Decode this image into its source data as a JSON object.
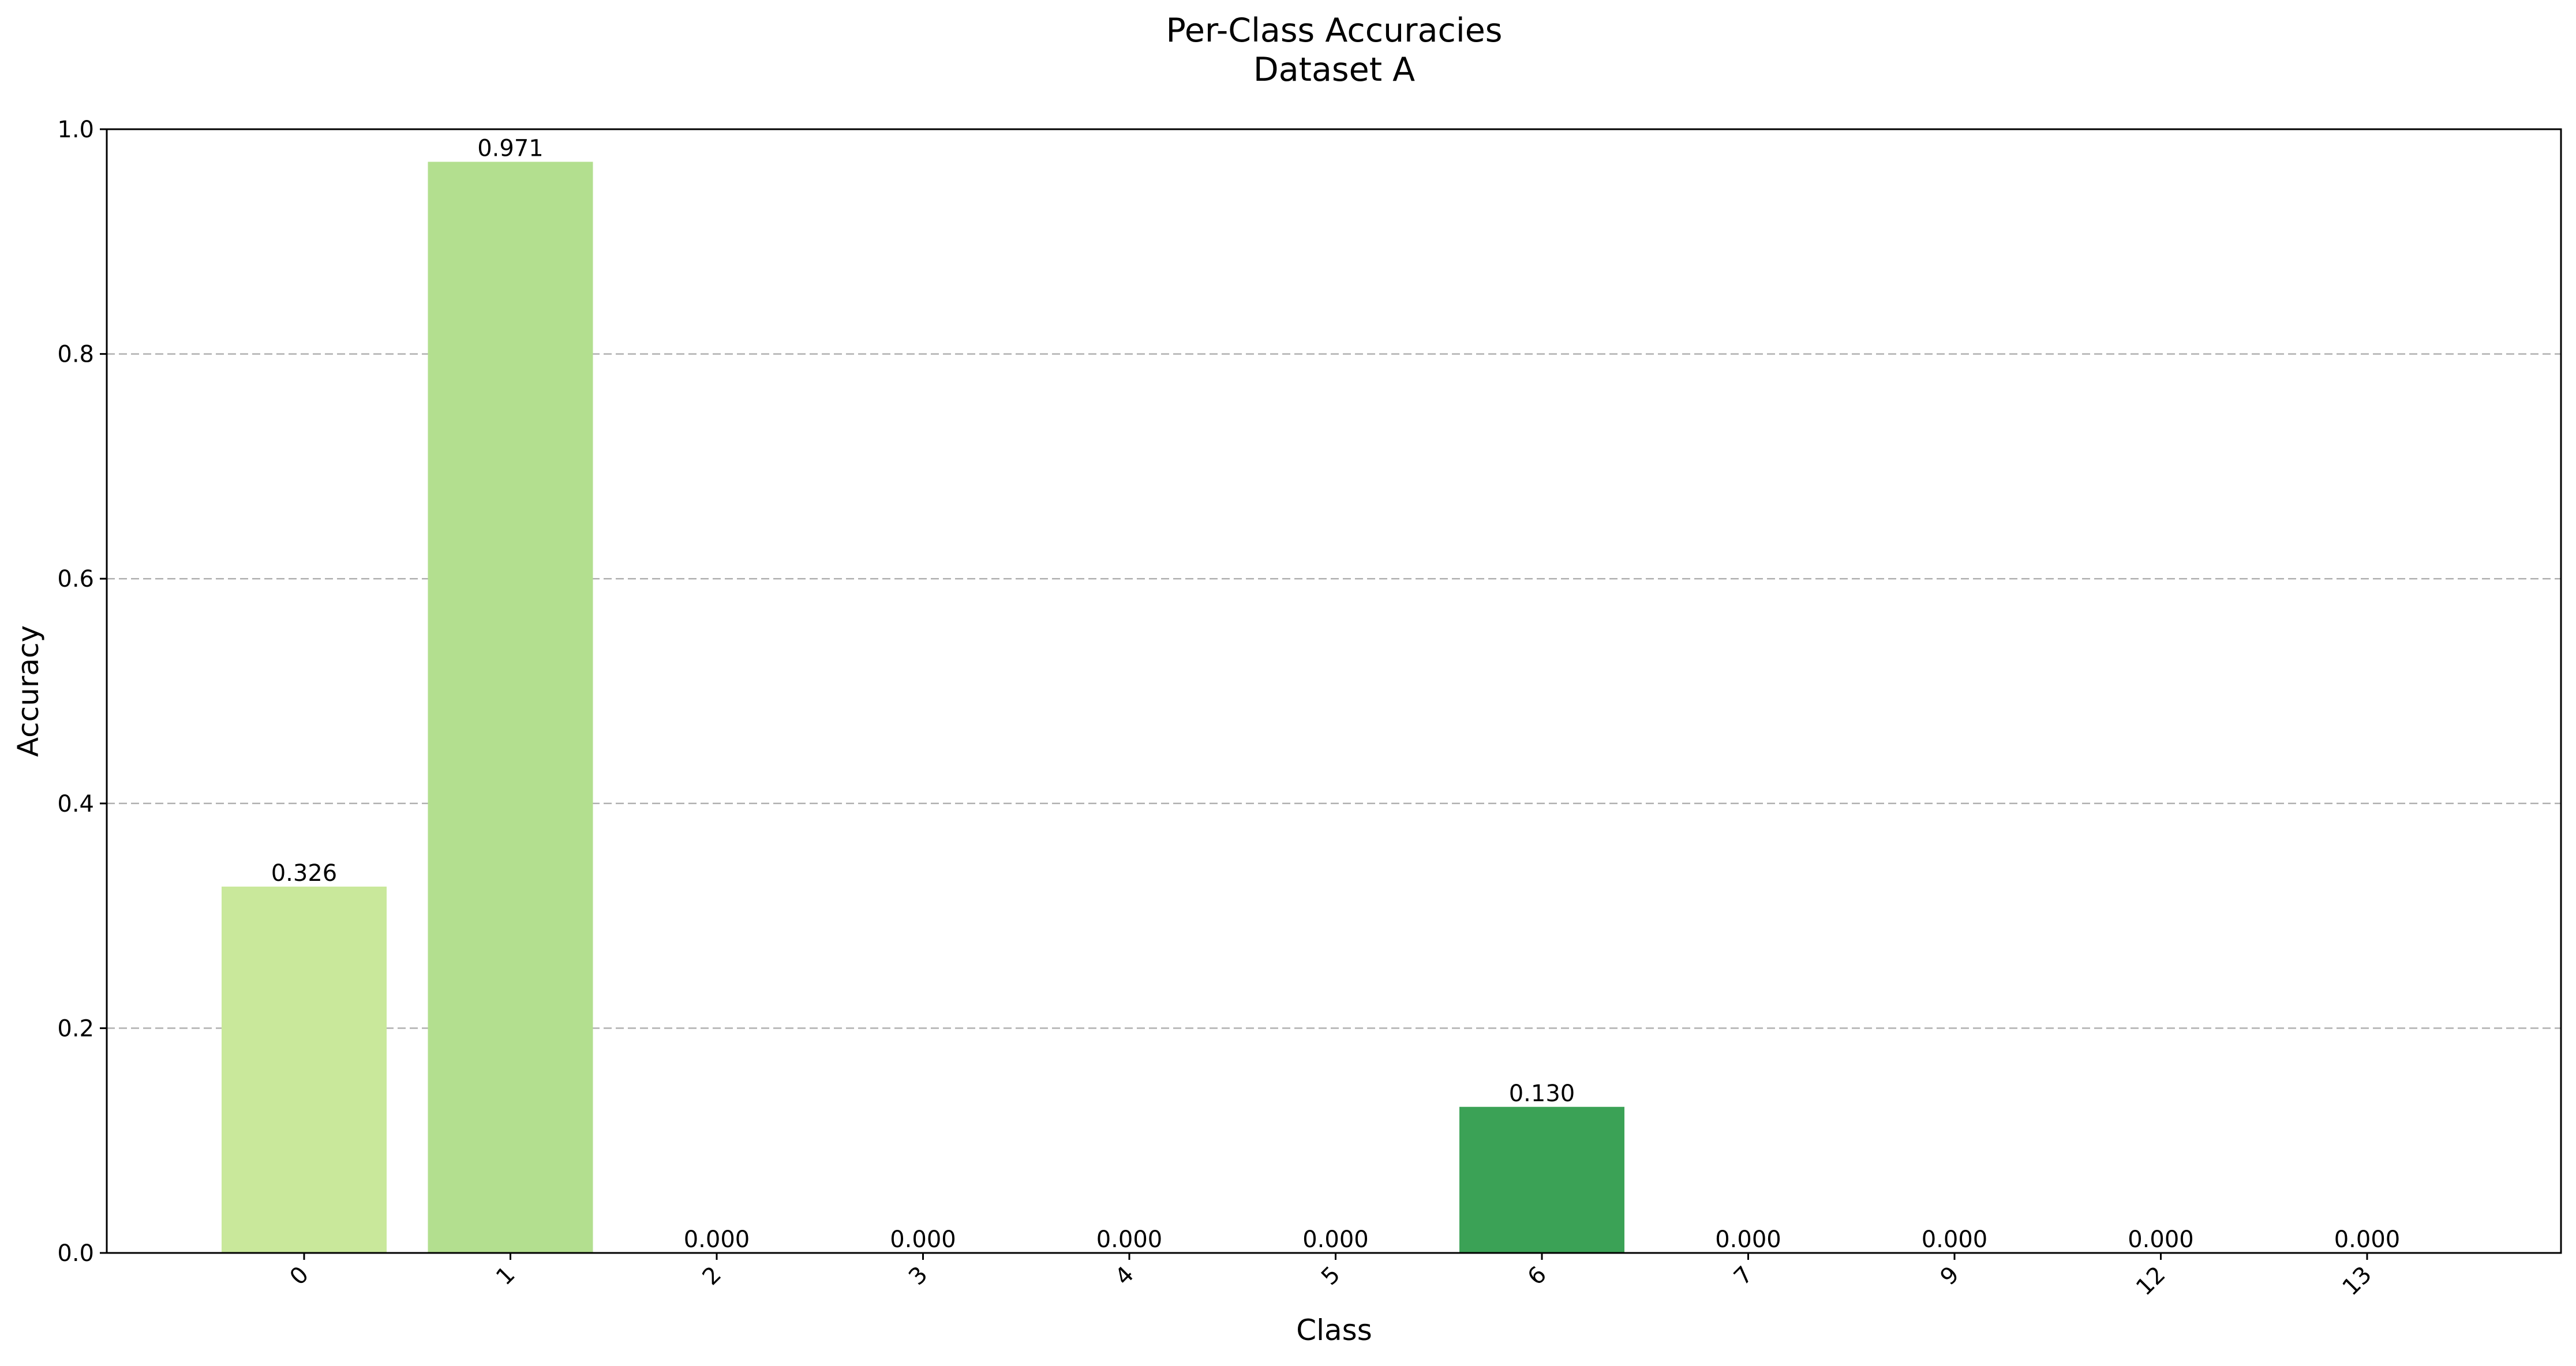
{
  "chart_data": {
    "type": "bar",
    "title": "Per-Class Accuracies",
    "subtitle": "Dataset A",
    "xlabel": "Class",
    "ylabel": "Accuracy",
    "ylim": [
      0,
      1.0
    ],
    "yticks": [
      "0.0",
      "0.2",
      "0.4",
      "0.6",
      "0.8",
      "1.0"
    ],
    "grid": "y-dashed",
    "categories": [
      "0",
      "1",
      "2",
      "3",
      "4",
      "5",
      "6",
      "7",
      "9",
      "12",
      "13"
    ],
    "values": [
      0.326,
      0.971,
      0.0,
      0.0,
      0.0,
      0.0,
      0.13,
      0.0,
      0.0,
      0.0,
      0.0
    ],
    "data_labels": [
      "0.326",
      "0.971",
      "0.000",
      "0.000",
      "0.000",
      "0.000",
      "0.130",
      "0.000",
      "0.000",
      "0.000",
      "0.000"
    ],
    "colors": [
      "#c9e89b",
      "#b3df8f",
      "#a8dc8c",
      "#96d480",
      "#84cc76",
      "#6fbe6a",
      "#3ba256",
      "#2d8f4a",
      "#1f7a3f",
      "#116434",
      "#05502a"
    ]
  }
}
